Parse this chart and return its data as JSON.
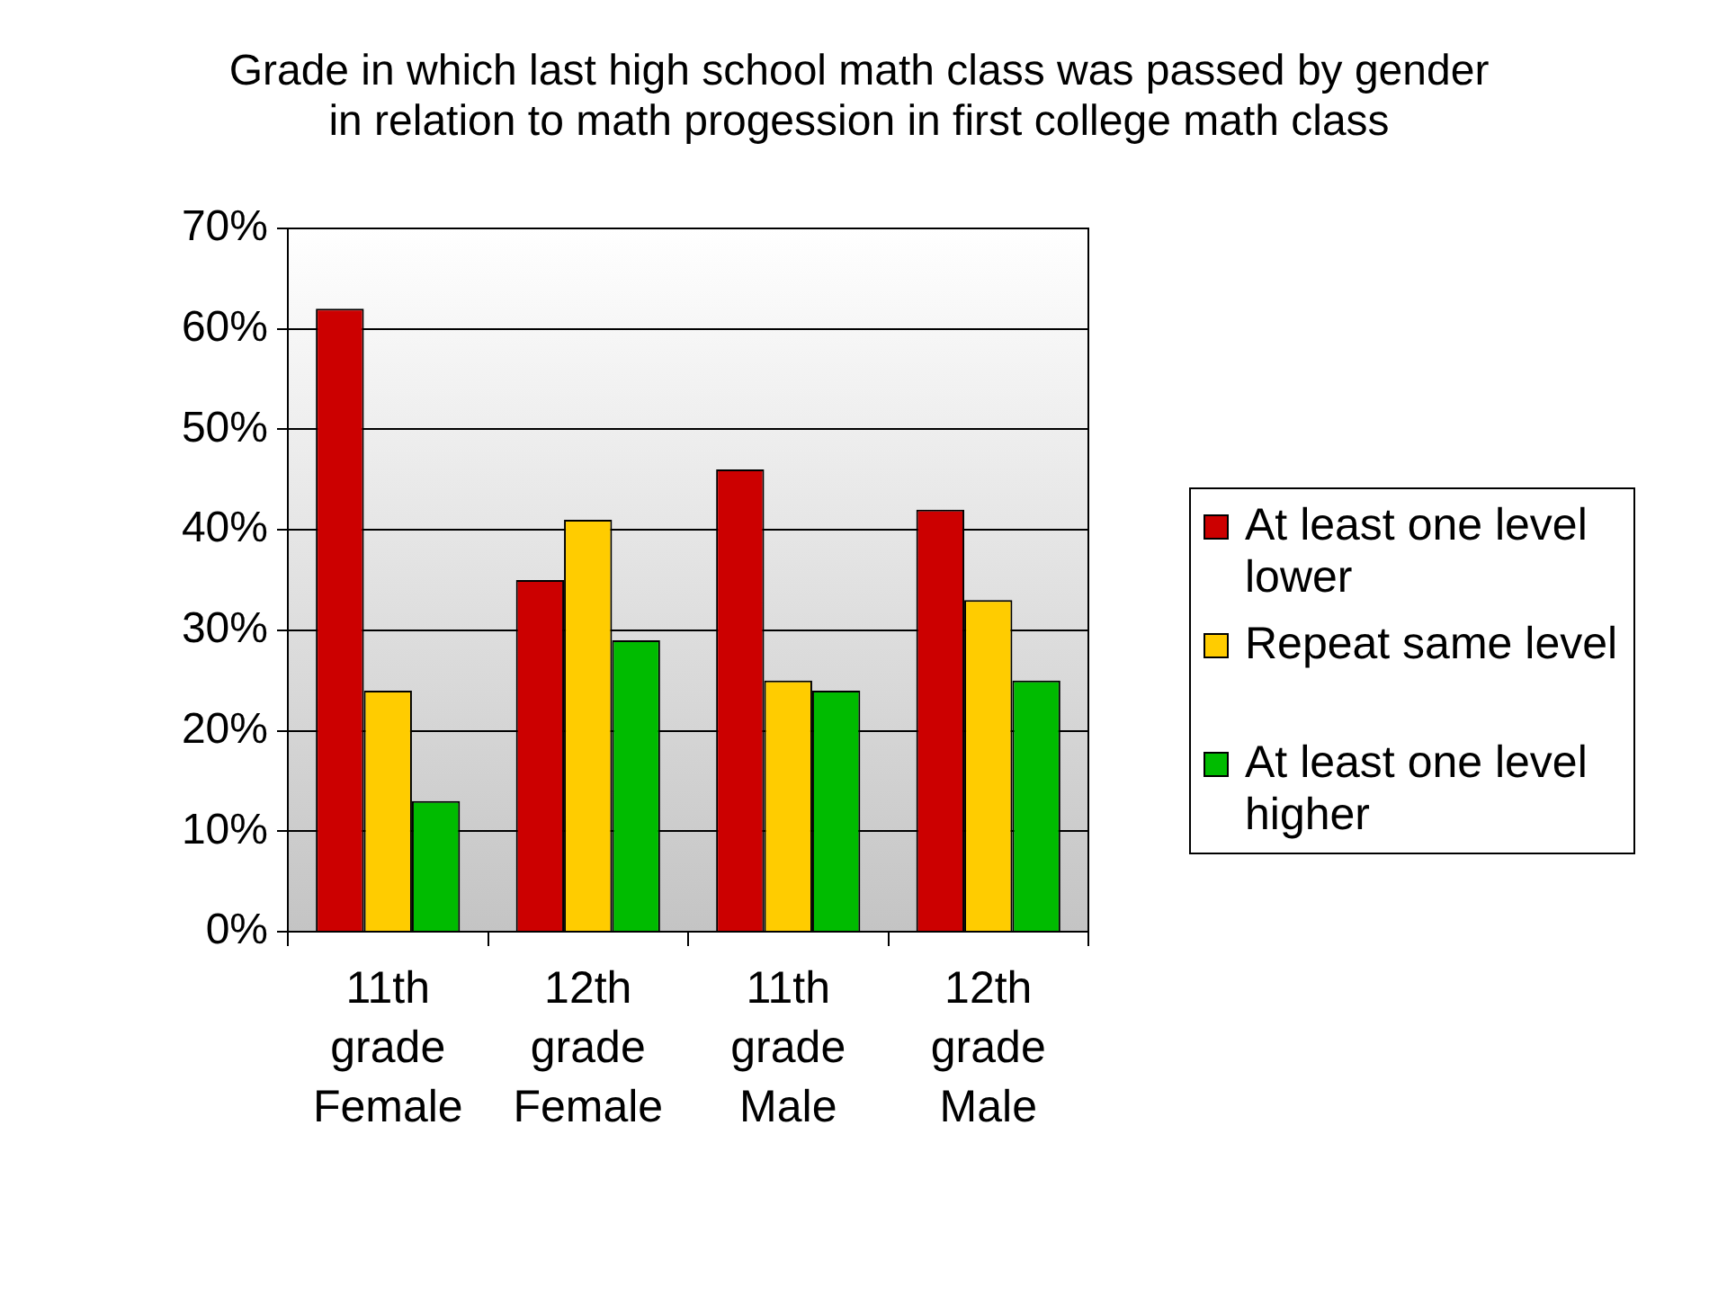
{
  "chart_data": {
    "type": "bar",
    "title": "Grade in which last high school math class was passed by gender in relation to math progession in first college math class",
    "categories": [
      "11th grade Female",
      "12th grade Female",
      "11th grade Male",
      "12th grade Male"
    ],
    "series": [
      {
        "name": "At least one level lower",
        "color": "#cc0000",
        "values": [
          62,
          35,
          46,
          42
        ]
      },
      {
        "name": "Repeat same level",
        "color": "#ffcc00",
        "values": [
          24,
          41,
          25,
          33
        ]
      },
      {
        "name": "At least one level higher",
        "color": "#00bb00",
        "values": [
          13,
          29,
          24,
          25
        ]
      }
    ],
    "ylim": [
      0,
      70
    ],
    "yticks": [
      {
        "value": 0,
        "label": "0%"
      },
      {
        "value": 10,
        "label": "10%"
      },
      {
        "value": 20,
        "label": "20%"
      },
      {
        "value": 30,
        "label": "30%"
      },
      {
        "value": 40,
        "label": "40%"
      },
      {
        "value": 50,
        "label": "50%"
      },
      {
        "value": 60,
        "label": "60%"
      },
      {
        "value": 70,
        "label": "70%"
      }
    ],
    "grid": "y",
    "legend": "right"
  }
}
